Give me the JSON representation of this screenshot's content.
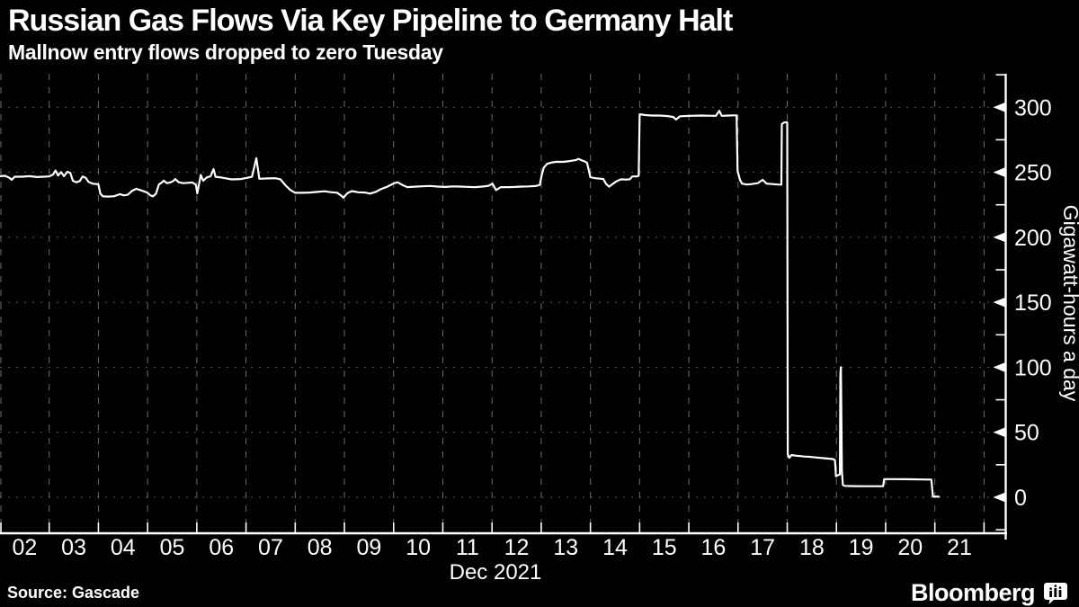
{
  "header": {
    "title": "Russian Gas Flows Via Key Pipeline to Germany Halt",
    "subtitle": "Mallnow entry flows dropped to zero Tuesday"
  },
  "footer": {
    "source": "Source: Gascade",
    "brand": "Bloomberg",
    "brand_icon": "bloomberg-bars-icon"
  },
  "chart_data": {
    "type": "line",
    "title": "Russian Gas Flows Via Key Pipeline to Germany Halt",
    "subtitle": "Mallnow entry flows dropped to zero Tuesday",
    "xlabel": "Dec 2021",
    "ylabel": "Gigawatt-hours a day",
    "x_tick_labels": [
      "02",
      "03",
      "04",
      "05",
      "06",
      "07",
      "08",
      "09",
      "10",
      "11",
      "12",
      "13",
      "14",
      "15",
      "16",
      "17",
      "18",
      "19",
      "20",
      "21"
    ],
    "x_domain_days": [
      2,
      22
    ],
    "y_ticks": [
      0,
      50,
      100,
      150,
      200,
      250,
      300
    ],
    "y_minor_ticks": [
      -25,
      25,
      75,
      125,
      175,
      225,
      275,
      325
    ],
    "y_domain": [
      -28,
      325
    ],
    "grid": true,
    "legend": "none",
    "colors": {
      "background": "#000000",
      "line": "#ffffff",
      "axis": "#ffffff",
      "text": "#ffffff",
      "grid_vertical": "#6b6b6b",
      "grid_horizontal": "#595959"
    },
    "series": [
      {
        "name": "Mallnow entry flows",
        "points": [
          [
            2.0,
            247.0
          ],
          [
            2.1,
            247.3
          ],
          [
            2.18,
            246.0
          ],
          [
            2.24,
            244.3
          ],
          [
            2.3,
            246.6
          ],
          [
            2.45,
            246.6
          ],
          [
            2.6,
            247.0
          ],
          [
            2.75,
            246.3
          ],
          [
            2.9,
            246.6
          ],
          [
            3.0,
            246.8
          ],
          [
            3.08,
            248.3
          ],
          [
            3.13,
            251.4
          ],
          [
            3.18,
            247.5
          ],
          [
            3.24,
            250.2
          ],
          [
            3.3,
            247.0
          ],
          [
            3.37,
            250.4
          ],
          [
            3.43,
            249.5
          ],
          [
            3.48,
            243.5
          ],
          [
            3.55,
            242.3
          ],
          [
            3.62,
            243.2
          ],
          [
            3.68,
            246.7
          ],
          [
            3.74,
            245.8
          ],
          [
            3.8,
            242.5
          ],
          [
            3.89,
            241.2
          ],
          [
            4.0,
            240.8
          ],
          [
            4.04,
            233.5
          ],
          [
            4.09,
            231.5
          ],
          [
            4.2,
            231.3
          ],
          [
            4.32,
            231.6
          ],
          [
            4.44,
            233.2
          ],
          [
            4.52,
            232.2
          ],
          [
            4.6,
            232.8
          ],
          [
            4.68,
            235.6
          ],
          [
            4.77,
            237.3
          ],
          [
            4.84,
            236.4
          ],
          [
            4.92,
            235.4
          ],
          [
            4.99,
            234.4
          ],
          [
            5.06,
            232.2
          ],
          [
            5.11,
            231.5
          ],
          [
            5.17,
            233.6
          ],
          [
            5.23,
            240.6
          ],
          [
            5.29,
            242.2
          ],
          [
            5.33,
            243.6
          ],
          [
            5.39,
            241.6
          ],
          [
            5.46,
            242.2
          ],
          [
            5.52,
            243.2
          ],
          [
            5.56,
            244.8
          ],
          [
            5.63,
            242.4
          ],
          [
            5.72,
            241.6
          ],
          [
            5.82,
            241.9
          ],
          [
            5.91,
            242.2
          ],
          [
            5.98,
            240.4
          ],
          [
            6.01,
            233.8
          ],
          [
            6.08,
            247.9
          ],
          [
            6.13,
            243.5
          ],
          [
            6.2,
            246.0
          ],
          [
            6.28,
            247.0
          ],
          [
            6.34,
            252.5
          ],
          [
            6.38,
            246.5
          ],
          [
            6.5,
            246.0
          ],
          [
            6.71,
            244.5
          ],
          [
            6.9,
            244.8
          ],
          [
            7.05,
            246.0
          ],
          [
            7.12,
            246.5
          ],
          [
            7.21,
            260.8
          ],
          [
            7.27,
            245.0
          ],
          [
            7.45,
            245.3
          ],
          [
            7.6,
            245.4
          ],
          [
            7.7,
            244.6
          ],
          [
            7.8,
            240.0
          ],
          [
            7.9,
            236.4
          ],
          [
            8.0,
            234.2
          ],
          [
            8.15,
            234.2
          ],
          [
            8.3,
            234.4
          ],
          [
            8.45,
            234.9
          ],
          [
            8.6,
            235.4
          ],
          [
            8.72,
            234.7
          ],
          [
            8.85,
            234.3
          ],
          [
            8.93,
            232.2
          ],
          [
            8.98,
            230.5
          ],
          [
            9.06,
            233.9
          ],
          [
            9.15,
            235.5
          ],
          [
            9.28,
            234.6
          ],
          [
            9.42,
            234.4
          ],
          [
            9.52,
            233.6
          ],
          [
            9.64,
            235.0
          ],
          [
            9.74,
            237.0
          ],
          [
            9.86,
            238.7
          ],
          [
            10.0,
            241.4
          ],
          [
            10.08,
            242.3
          ],
          [
            10.18,
            240.2
          ],
          [
            10.28,
            238.6
          ],
          [
            10.42,
            238.9
          ],
          [
            10.58,
            239.2
          ],
          [
            10.74,
            239.5
          ],
          [
            10.9,
            239.0
          ],
          [
            11.05,
            238.7
          ],
          [
            11.2,
            239.1
          ],
          [
            11.35,
            239.0
          ],
          [
            11.5,
            238.8
          ],
          [
            11.65,
            238.6
          ],
          [
            11.8,
            239.0
          ],
          [
            11.93,
            239.6
          ],
          [
            12.01,
            241.3
          ],
          [
            12.08,
            236.3
          ],
          [
            12.18,
            238.6
          ],
          [
            12.32,
            238.6
          ],
          [
            12.46,
            238.7
          ],
          [
            12.6,
            239.0
          ],
          [
            12.74,
            239.1
          ],
          [
            12.88,
            239.4
          ],
          [
            12.97,
            240.2
          ],
          [
            13.01,
            248.0
          ],
          [
            13.05,
            253.5
          ],
          [
            13.12,
            256.5
          ],
          [
            13.22,
            257.6
          ],
          [
            13.32,
            258.1
          ],
          [
            13.45,
            258.0
          ],
          [
            13.58,
            258.6
          ],
          [
            13.7,
            259.3
          ],
          [
            13.76,
            260.3
          ],
          [
            13.82,
            259.2
          ],
          [
            13.88,
            258.4
          ],
          [
            13.93,
            257.4
          ],
          [
            13.97,
            251.0
          ],
          [
            14.0,
            246.2
          ],
          [
            14.1,
            245.4
          ],
          [
            14.2,
            245.1
          ],
          [
            14.26,
            244.8
          ],
          [
            14.32,
            240.9
          ],
          [
            14.38,
            238.9
          ],
          [
            14.46,
            241.2
          ],
          [
            14.53,
            243.1
          ],
          [
            14.62,
            244.6
          ],
          [
            14.72,
            244.4
          ],
          [
            14.8,
            244.6
          ],
          [
            14.85,
            246.8
          ],
          [
            14.94,
            246.8
          ],
          [
            14.98,
            247.2
          ],
          [
            15.0,
            294.6
          ],
          [
            15.12,
            294.0
          ],
          [
            15.25,
            293.6
          ],
          [
            15.4,
            293.6
          ],
          [
            15.55,
            293.3
          ],
          [
            15.68,
            292.6
          ],
          [
            15.74,
            290.6
          ],
          [
            15.82,
            293.1
          ],
          [
            15.95,
            293.3
          ],
          [
            16.1,
            293.5
          ],
          [
            16.25,
            293.6
          ],
          [
            16.4,
            293.5
          ],
          [
            16.55,
            293.4
          ],
          [
            16.62,
            297.3
          ],
          [
            16.67,
            293.4
          ],
          [
            16.8,
            293.6
          ],
          [
            16.9,
            293.8
          ],
          [
            16.97,
            293.8
          ],
          [
            16.99,
            251.0
          ],
          [
            17.04,
            244.0
          ],
          [
            17.08,
            241.3
          ],
          [
            17.18,
            240.6
          ],
          [
            17.28,
            240.9
          ],
          [
            17.4,
            241.6
          ],
          [
            17.5,
            244.2
          ],
          [
            17.58,
            241.3
          ],
          [
            17.7,
            240.9
          ],
          [
            17.8,
            240.6
          ],
          [
            17.88,
            240.5
          ],
          [
            17.89,
            287.0
          ],
          [
            17.93,
            288.2
          ],
          [
            17.99,
            288.6
          ],
          [
            18.0,
            288.0
          ],
          [
            18.01,
            33.4
          ],
          [
            18.04,
            30.4
          ],
          [
            18.09,
            32.5
          ],
          [
            18.17,
            32.0
          ],
          [
            18.26,
            31.7
          ],
          [
            18.36,
            31.3
          ],
          [
            18.46,
            31.1
          ],
          [
            18.6,
            30.6
          ],
          [
            18.74,
            30.1
          ],
          [
            18.86,
            29.7
          ],
          [
            18.93,
            29.4
          ],
          [
            18.97,
            28.6
          ],
          [
            18.99,
            16.1
          ],
          [
            19.03,
            17.0
          ],
          [
            19.07,
            17.6
          ],
          [
            19.08,
            95.0
          ],
          [
            19.09,
            100.0
          ],
          [
            19.11,
            20.0
          ],
          [
            19.13,
            9.5
          ],
          [
            19.17,
            8.8
          ],
          [
            19.35,
            8.6
          ],
          [
            19.55,
            8.5
          ],
          [
            19.75,
            8.5
          ],
          [
            19.95,
            8.6
          ],
          [
            19.97,
            14.0
          ],
          [
            20.15,
            14.0
          ],
          [
            20.35,
            13.9
          ],
          [
            20.55,
            13.8
          ],
          [
            20.75,
            13.7
          ],
          [
            20.93,
            13.6
          ],
          [
            20.96,
            0.6
          ],
          [
            21.08,
            0.4
          ]
        ]
      }
    ]
  }
}
